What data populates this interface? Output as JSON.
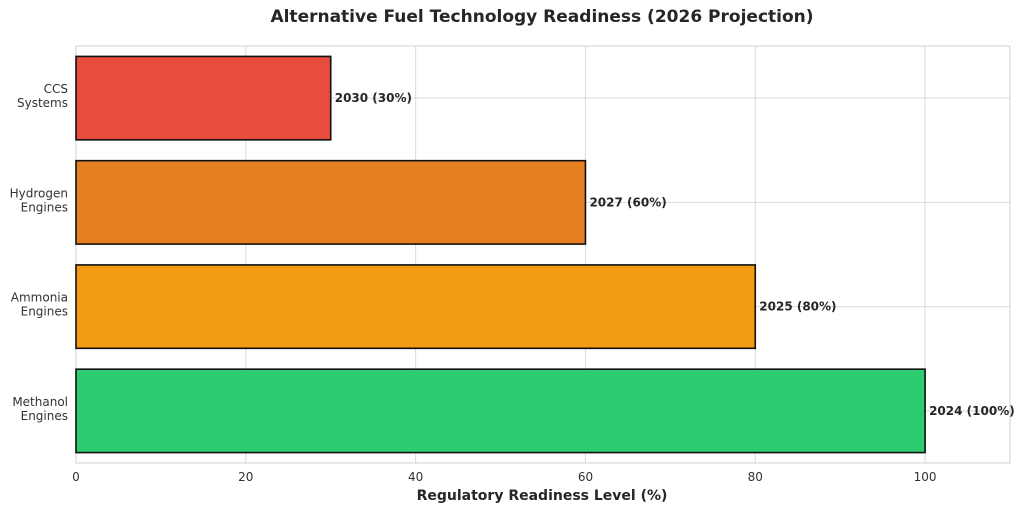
{
  "chart_data": {
    "type": "bar",
    "orientation": "horizontal",
    "title": "Alternative Fuel Technology Readiness (2026 Projection)",
    "xlabel": "Regulatory Readiness Level (%)",
    "ylabel": "",
    "xlim": [
      0,
      110
    ],
    "xticks": [
      0,
      20,
      40,
      60,
      80,
      100
    ],
    "grid": true,
    "categories": [
      [
        "Methanol",
        "Engines"
      ],
      [
        "Ammonia",
        "Engines"
      ],
      [
        "Hydrogen",
        "Engines"
      ],
      [
        "CCS",
        "Systems"
      ]
    ],
    "values": [
      100,
      80,
      60,
      30
    ],
    "data_labels": [
      "2024 (100%)",
      "2025 (80%)",
      "2027 (60%)",
      "2030 (30%)"
    ],
    "colors": [
      "#2ecc71",
      "#f39c12",
      "#e67e22",
      "#e74c3c"
    ]
  }
}
